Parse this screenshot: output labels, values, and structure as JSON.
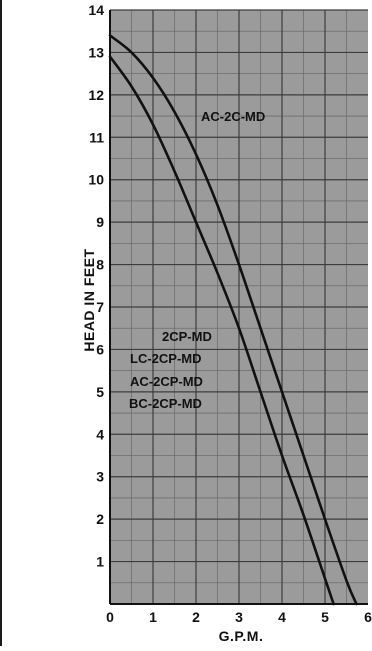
{
  "chart_data": {
    "type": "line",
    "title": "",
    "xlabel": "G.P.M.",
    "ylabel": "HEAD IN FEET",
    "xlim": [
      0,
      6
    ],
    "ylim": [
      0,
      14
    ],
    "x_ticks": [
      "0",
      "1",
      "2",
      "3",
      "4",
      "5",
      "6"
    ],
    "y_ticks": [
      "1",
      "2",
      "3",
      "4",
      "5",
      "6",
      "7",
      "8",
      "9",
      "10",
      "11",
      "12",
      "13",
      "14"
    ],
    "grid": true,
    "x_minor_divisions": 2,
    "y_minor_divisions": 2,
    "series": [
      {
        "name": "AC-2C-MD",
        "x": [
          0,
          0.5,
          1.0,
          1.5,
          2.0,
          2.5,
          3.0,
          3.5,
          4.0,
          4.5,
          5.0,
          5.5,
          5.73
        ],
        "y": [
          13.4,
          13.0,
          12.4,
          11.6,
          10.6,
          9.4,
          8.0,
          6.5,
          5.0,
          3.5,
          2.0,
          0.55,
          0
        ]
      },
      {
        "name": "",
        "labels": [
          "2CP-MD",
          "LC-2CP-MD",
          "AC-2CP-MD",
          "BC-2CP-MD"
        ],
        "x": [
          0,
          0.5,
          1.0,
          1.5,
          2.0,
          2.5,
          3.0,
          3.5,
          4.0,
          4.5,
          5.0,
          5.2
        ],
        "y": [
          12.9,
          12.2,
          11.3,
          10.2,
          9.0,
          7.8,
          6.5,
          5.0,
          3.5,
          2.1,
          0.6,
          0
        ]
      }
    ]
  },
  "colors": {
    "plot_background": "#9b9b9b",
    "grid_major": "#3c3c3c",
    "grid_minor": "#6e6e6e",
    "curve": "#111111"
  }
}
